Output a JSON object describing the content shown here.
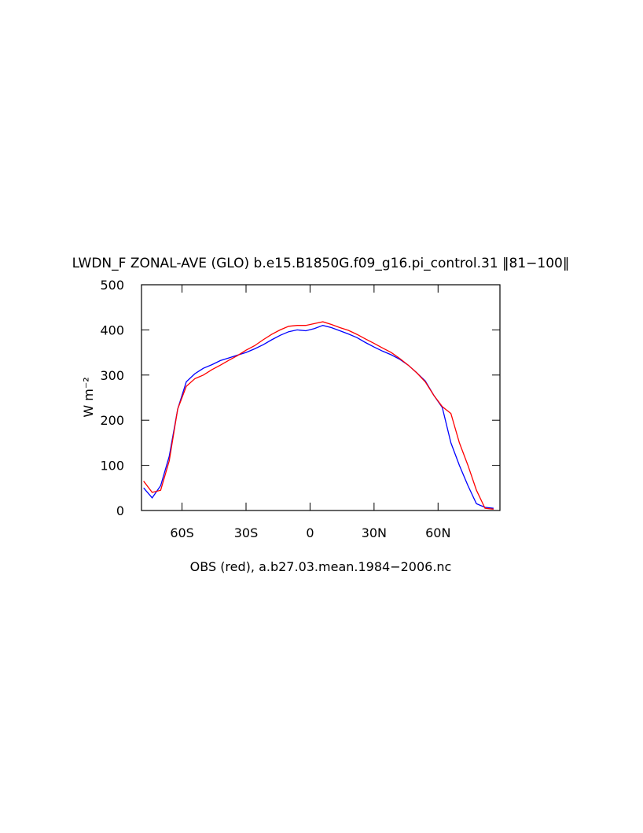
{
  "chart_data": {
    "type": "line",
    "title": "LWDN_F ZONAL-AVE (GLO) b.e15.B1850G.f09_g16.pi_control.31 ‖81−100‖",
    "subtitle": "OBS (red), a.b27.03.mean.1984−2006.nc",
    "y_label": "W m⁻²",
    "x": [
      -78,
      -74,
      -70,
      -66,
      -62,
      -58,
      -54,
      -50,
      -46,
      -42,
      -38,
      -34,
      -30,
      -26,
      -22,
      -18,
      -14,
      -10,
      -6,
      -2,
      2,
      6,
      10,
      14,
      18,
      22,
      26,
      30,
      34,
      38,
      42,
      46,
      50,
      54,
      58,
      62,
      66,
      70,
      74,
      78,
      82,
      86
    ],
    "series": [
      {
        "color": "#0000ff",
        "values": [
          50,
          28,
          55,
          120,
          225,
          285,
          303,
          315,
          323,
          332,
          338,
          344,
          350,
          358,
          367,
          378,
          388,
          396,
          400,
          398,
          403,
          410,
          405,
          398,
          391,
          383,
          372,
          362,
          353,
          345,
          335,
          322,
          305,
          287,
          255,
          228,
          150,
          100,
          55,
          15,
          7,
          5
        ]
      },
      {
        "color": "#ff0000",
        "values": [
          65,
          40,
          45,
          110,
          225,
          275,
          292,
          300,
          312,
          322,
          333,
          343,
          355,
          365,
          378,
          390,
          400,
          408,
          410,
          410,
          414,
          418,
          412,
          405,
          399,
          390,
          380,
          370,
          360,
          350,
          337,
          322,
          305,
          285,
          255,
          230,
          215,
          150,
          100,
          45,
          5,
          3
        ]
      }
    ],
    "xlim": [
      -79,
      89
    ],
    "xticks": [
      {
        "value": -60,
        "label": "60S"
      },
      {
        "value": -30,
        "label": "30S"
      },
      0,
      {
        "value": 30,
        "label": "30N"
      },
      {
        "value": 60,
        "label": "60N"
      }
    ],
    "ylim": [
      0,
      500
    ],
    "yticks": [
      0,
      100,
      200,
      300,
      400,
      500
    ],
    "grid": false
  }
}
